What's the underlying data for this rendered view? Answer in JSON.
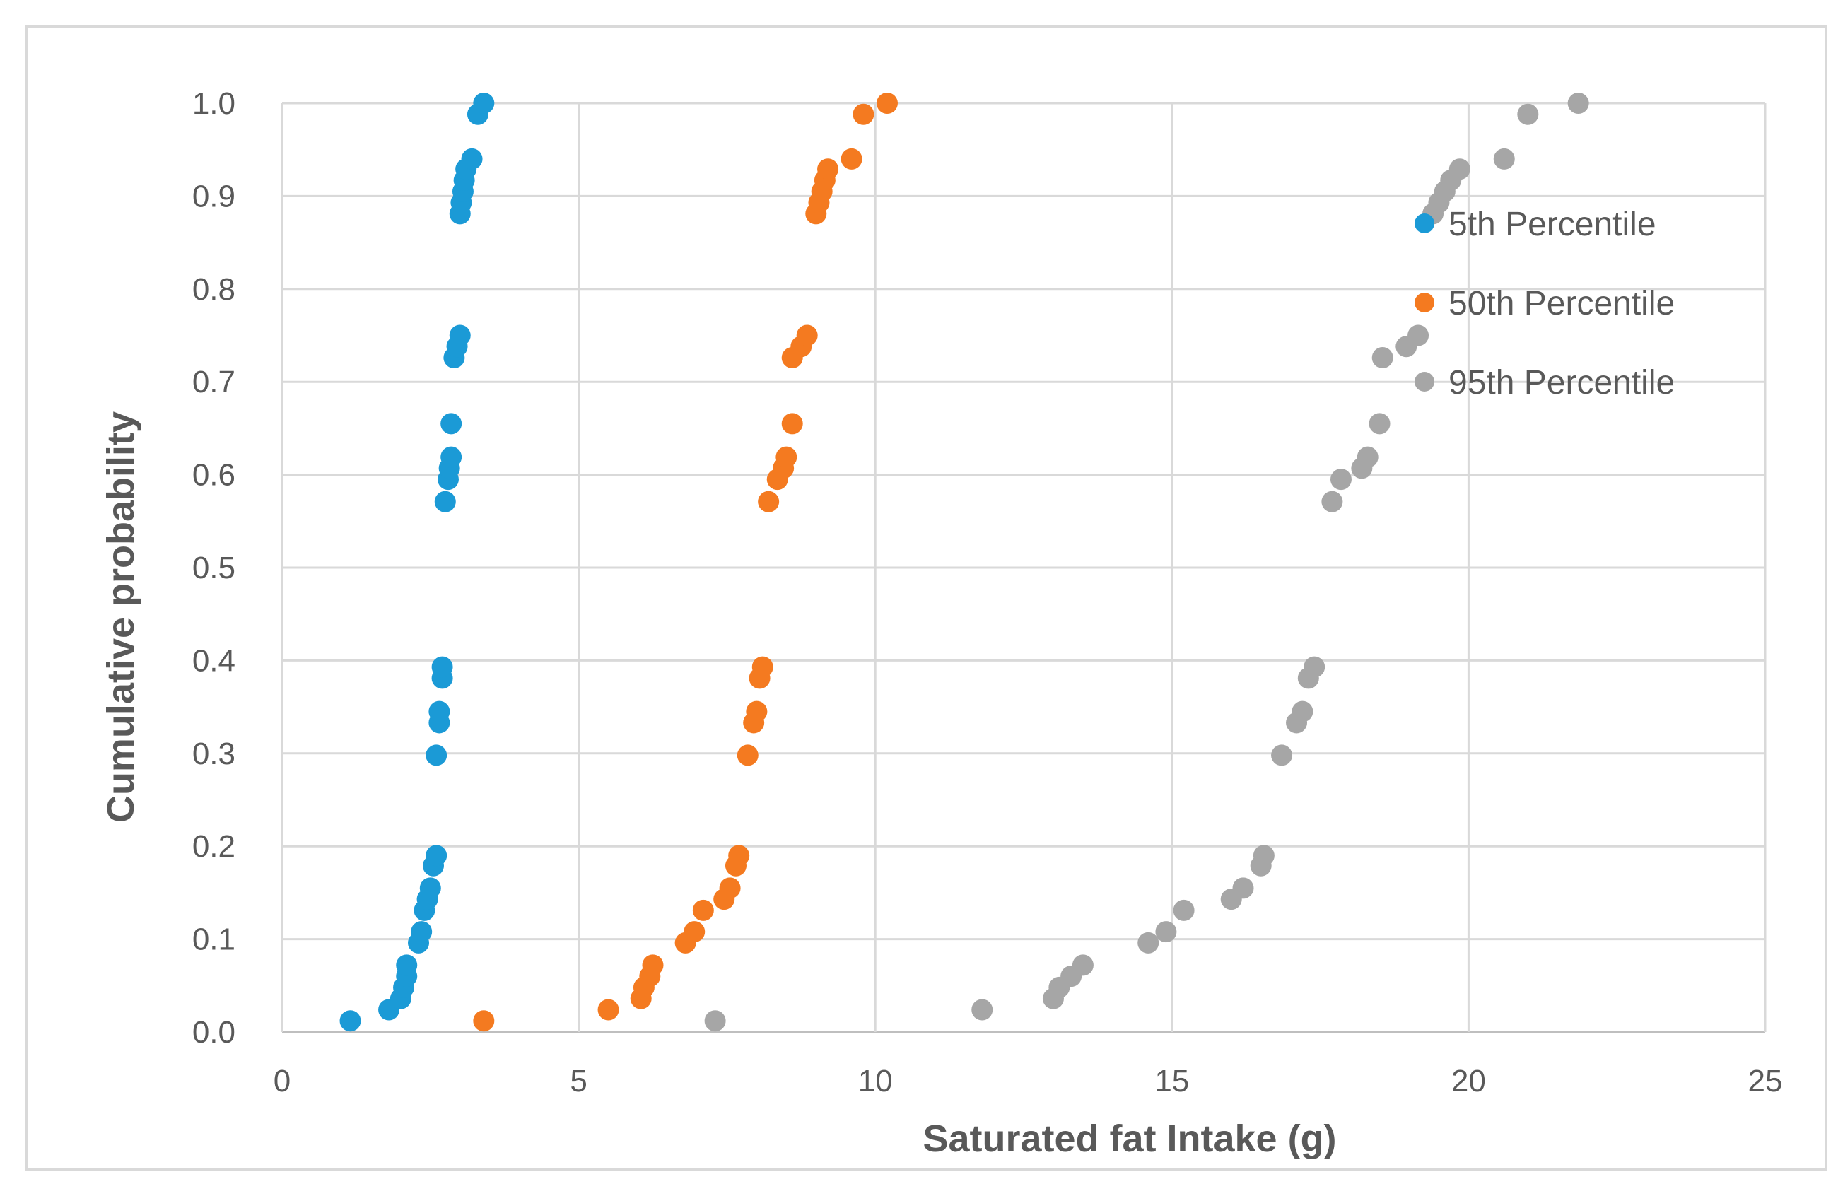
{
  "chart_data": {
    "type": "scatter",
    "title": "",
    "xlabel": "Saturated fat Intake (g)",
    "ylabel": "Cumulative probability",
    "xlim": [
      0,
      25
    ],
    "ylim": [
      0,
      1
    ],
    "x_ticks": [
      "0",
      "5",
      "10",
      "15",
      "20",
      "25"
    ],
    "y_ticks": [
      "0.0",
      "0.1",
      "0.2",
      "0.3",
      "0.4",
      "0.5",
      "0.6",
      "0.7",
      "0.8",
      "0.9",
      "1.0"
    ],
    "grid": true,
    "legend_position": "top-right",
    "series": [
      {
        "name": "5th Percentile",
        "color": "#1b9ad6",
        "points": [
          [
            1.15,
            0.012
          ],
          [
            1.8,
            0.024
          ],
          [
            2.0,
            0.036
          ],
          [
            2.05,
            0.048
          ],
          [
            2.1,
            0.06
          ],
          [
            2.1,
            0.072
          ],
          [
            2.3,
            0.096
          ],
          [
            2.35,
            0.108
          ],
          [
            2.4,
            0.131
          ],
          [
            2.45,
            0.143
          ],
          [
            2.5,
            0.155
          ],
          [
            2.55,
            0.179
          ],
          [
            2.6,
            0.19
          ],
          [
            2.6,
            0.298
          ],
          [
            2.65,
            0.333
          ],
          [
            2.65,
            0.345
          ],
          [
            2.7,
            0.381
          ],
          [
            2.7,
            0.393
          ],
          [
            2.75,
            0.571
          ],
          [
            2.8,
            0.595
          ],
          [
            2.82,
            0.607
          ],
          [
            2.85,
            0.619
          ],
          [
            2.85,
            0.655
          ],
          [
            2.9,
            0.726
          ],
          [
            2.95,
            0.738
          ],
          [
            3.0,
            0.75
          ],
          [
            3.0,
            0.881
          ],
          [
            3.02,
            0.893
          ],
          [
            3.05,
            0.905
          ],
          [
            3.07,
            0.917
          ],
          [
            3.1,
            0.929
          ],
          [
            3.2,
            0.94
          ],
          [
            3.3,
            0.988
          ],
          [
            3.4,
            1.0
          ]
        ]
      },
      {
        "name": "50th Percentile",
        "color": "#f47a20",
        "points": [
          [
            3.4,
            0.012
          ],
          [
            5.5,
            0.024
          ],
          [
            6.05,
            0.036
          ],
          [
            6.1,
            0.048
          ],
          [
            6.2,
            0.06
          ],
          [
            6.25,
            0.072
          ],
          [
            6.8,
            0.096
          ],
          [
            6.95,
            0.108
          ],
          [
            7.1,
            0.131
          ],
          [
            7.45,
            0.143
          ],
          [
            7.55,
            0.155
          ],
          [
            7.65,
            0.179
          ],
          [
            7.7,
            0.19
          ],
          [
            7.85,
            0.298
          ],
          [
            7.95,
            0.333
          ],
          [
            8.0,
            0.345
          ],
          [
            8.05,
            0.381
          ],
          [
            8.1,
            0.393
          ],
          [
            8.2,
            0.571
          ],
          [
            8.35,
            0.595
          ],
          [
            8.45,
            0.607
          ],
          [
            8.5,
            0.619
          ],
          [
            8.6,
            0.655
          ],
          [
            8.6,
            0.726
          ],
          [
            8.75,
            0.738
          ],
          [
            8.85,
            0.75
          ],
          [
            9.0,
            0.881
          ],
          [
            9.05,
            0.893
          ],
          [
            9.1,
            0.905
          ],
          [
            9.15,
            0.917
          ],
          [
            9.2,
            0.929
          ],
          [
            9.6,
            0.94
          ],
          [
            9.8,
            0.988
          ],
          [
            10.2,
            1.0
          ]
        ]
      },
      {
        "name": "95th Percentile",
        "color": "#a6a6a6",
        "points": [
          [
            7.3,
            0.012
          ],
          [
            11.8,
            0.024
          ],
          [
            13.0,
            0.036
          ],
          [
            13.1,
            0.048
          ],
          [
            13.3,
            0.06
          ],
          [
            13.5,
            0.072
          ],
          [
            14.6,
            0.096
          ],
          [
            14.9,
            0.108
          ],
          [
            15.2,
            0.131
          ],
          [
            16.0,
            0.143
          ],
          [
            16.2,
            0.155
          ],
          [
            16.5,
            0.179
          ],
          [
            16.55,
            0.19
          ],
          [
            16.85,
            0.298
          ],
          [
            17.1,
            0.333
          ],
          [
            17.2,
            0.345
          ],
          [
            17.3,
            0.381
          ],
          [
            17.4,
            0.393
          ],
          [
            17.7,
            0.571
          ],
          [
            17.85,
            0.595
          ],
          [
            18.2,
            0.607
          ],
          [
            18.3,
            0.619
          ],
          [
            18.5,
            0.655
          ],
          [
            18.55,
            0.726
          ],
          [
            18.95,
            0.738
          ],
          [
            19.15,
            0.75
          ],
          [
            19.4,
            0.881
          ],
          [
            19.5,
            0.893
          ],
          [
            19.6,
            0.905
          ],
          [
            19.7,
            0.917
          ],
          [
            19.85,
            0.929
          ],
          [
            20.6,
            0.94
          ],
          [
            21.0,
            0.988
          ],
          [
            21.85,
            1.0
          ]
        ]
      }
    ]
  }
}
